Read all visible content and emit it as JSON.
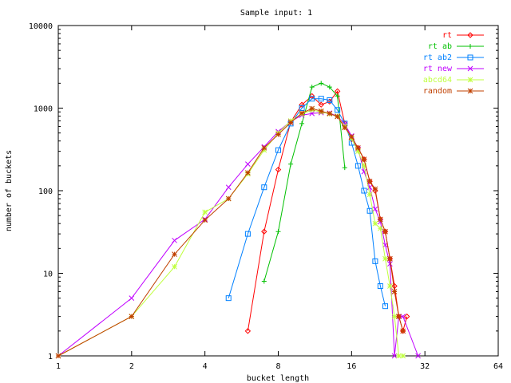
{
  "chart_data": {
    "type": "line",
    "title": "Sample input: 1",
    "xlabel": "bucket length",
    "ylabel": "number of buckets",
    "x_scale": "log2",
    "y_scale": "log10",
    "xlim": [
      1,
      64
    ],
    "ylim": [
      1,
      10000
    ],
    "x_ticks": [
      1,
      2,
      4,
      8,
      16,
      32,
      64
    ],
    "y_ticks": [
      1,
      10,
      100,
      1000,
      10000
    ],
    "x_tick_labels": [
      "1",
      "2",
      "4",
      "8",
      "16",
      "32",
      "64"
    ],
    "y_tick_labels": [
      "1",
      "10",
      "100",
      "1000",
      "10000"
    ],
    "legend_position": "top-right",
    "grid": false,
    "series": [
      {
        "name": "rt",
        "color": "#ff0000",
        "marker": "diamond",
        "points": [
          [
            6,
            2
          ],
          [
            7,
            32
          ],
          [
            8,
            180
          ],
          [
            9,
            680
          ],
          [
            10,
            1100
          ],
          [
            11,
            1400
          ],
          [
            12,
            1100
          ],
          [
            13,
            1200
          ],
          [
            14,
            1600
          ],
          [
            15,
            650
          ],
          [
            16,
            420
          ],
          [
            17,
            330
          ],
          [
            18,
            240
          ],
          [
            19,
            130
          ],
          [
            20,
            100
          ],
          [
            21,
            45
          ],
          [
            22,
            32
          ],
          [
            23,
            15
          ],
          [
            24,
            7
          ],
          [
            25,
            3
          ],
          [
            26,
            2
          ],
          [
            27,
            3
          ]
        ]
      },
      {
        "name": "rt ab",
        "color": "#00c000",
        "marker": "plus",
        "points": [
          [
            7,
            8
          ],
          [
            8,
            32
          ],
          [
            9,
            210
          ],
          [
            10,
            650
          ],
          [
            11,
            1800
          ],
          [
            12,
            2000
          ],
          [
            13,
            1800
          ],
          [
            14,
            1400
          ],
          [
            15,
            190
          ]
        ]
      },
      {
        "name": "rt ab2",
        "color": "#0080ff",
        "marker": "square",
        "points": [
          [
            5,
            5
          ],
          [
            6,
            30
          ],
          [
            7,
            110
          ],
          [
            8,
            310
          ],
          [
            9,
            650
          ],
          [
            10,
            1000
          ],
          [
            11,
            1300
          ],
          [
            12,
            1300
          ],
          [
            13,
            1250
          ],
          [
            14,
            950
          ],
          [
            15,
            650
          ],
          [
            16,
            380
          ],
          [
            17,
            200
          ],
          [
            18,
            100
          ],
          [
            19,
            57
          ],
          [
            20,
            14
          ],
          [
            21,
            7
          ],
          [
            22,
            4
          ]
        ]
      },
      {
        "name": "rt new",
        "color": "#c000ff",
        "marker": "x",
        "points": [
          [
            1,
            1
          ],
          [
            2,
            5
          ],
          [
            3,
            25
          ],
          [
            4,
            45
          ],
          [
            5,
            110
          ],
          [
            6,
            210
          ],
          [
            7,
            340
          ],
          [
            8,
            520
          ],
          [
            9,
            690
          ],
          [
            10,
            820
          ],
          [
            11,
            860
          ],
          [
            12,
            880
          ],
          [
            13,
            870
          ],
          [
            14,
            800
          ],
          [
            15,
            640
          ],
          [
            16,
            460
          ],
          [
            17,
            320
          ],
          [
            18,
            170
          ],
          [
            19,
            110
          ],
          [
            20,
            60
          ],
          [
            21,
            42
          ],
          [
            22,
            22
          ],
          [
            23,
            13
          ],
          [
            24,
            1
          ],
          [
            25,
            3
          ],
          [
            26,
            3
          ],
          [
            30,
            1
          ]
        ]
      },
      {
        "name": "abcd64",
        "color": "#c0ff40",
        "marker": "star",
        "points": [
          [
            1,
            1
          ],
          [
            2,
            3
          ],
          [
            3,
            12
          ],
          [
            4,
            55
          ],
          [
            5,
            80
          ],
          [
            6,
            160
          ],
          [
            7,
            310
          ],
          [
            8,
            500
          ],
          [
            9,
            700
          ],
          [
            10,
            850
          ],
          [
            11,
            950
          ],
          [
            12,
            900
          ],
          [
            13,
            850
          ],
          [
            14,
            800
          ],
          [
            15,
            600
          ],
          [
            16,
            430
          ],
          [
            17,
            300
          ],
          [
            18,
            200
          ],
          [
            19,
            90
          ],
          [
            20,
            40
          ],
          [
            21,
            35
          ],
          [
            22,
            15
          ],
          [
            23,
            7
          ],
          [
            24,
            3
          ],
          [
            25,
            1
          ],
          [
            26,
            1
          ]
        ]
      },
      {
        "name": "random",
        "color": "#c04000",
        "marker": "star",
        "points": [
          [
            1,
            1
          ],
          [
            2,
            3
          ],
          [
            3,
            17
          ],
          [
            4,
            44
          ],
          [
            5,
            80
          ],
          [
            6,
            165
          ],
          [
            7,
            330
          ],
          [
            8,
            480
          ],
          [
            9,
            670
          ],
          [
            10,
            870
          ],
          [
            11,
            990
          ],
          [
            12,
            920
          ],
          [
            13,
            860
          ],
          [
            14,
            790
          ],
          [
            15,
            580
          ],
          [
            16,
            450
          ],
          [
            17,
            330
          ],
          [
            18,
            240
          ],
          [
            19,
            130
          ],
          [
            20,
            105
          ],
          [
            21,
            45
          ],
          [
            22,
            32
          ],
          [
            23,
            15
          ],
          [
            24,
            6
          ],
          [
            25,
            3
          ],
          [
            26,
            2
          ]
        ]
      }
    ]
  }
}
